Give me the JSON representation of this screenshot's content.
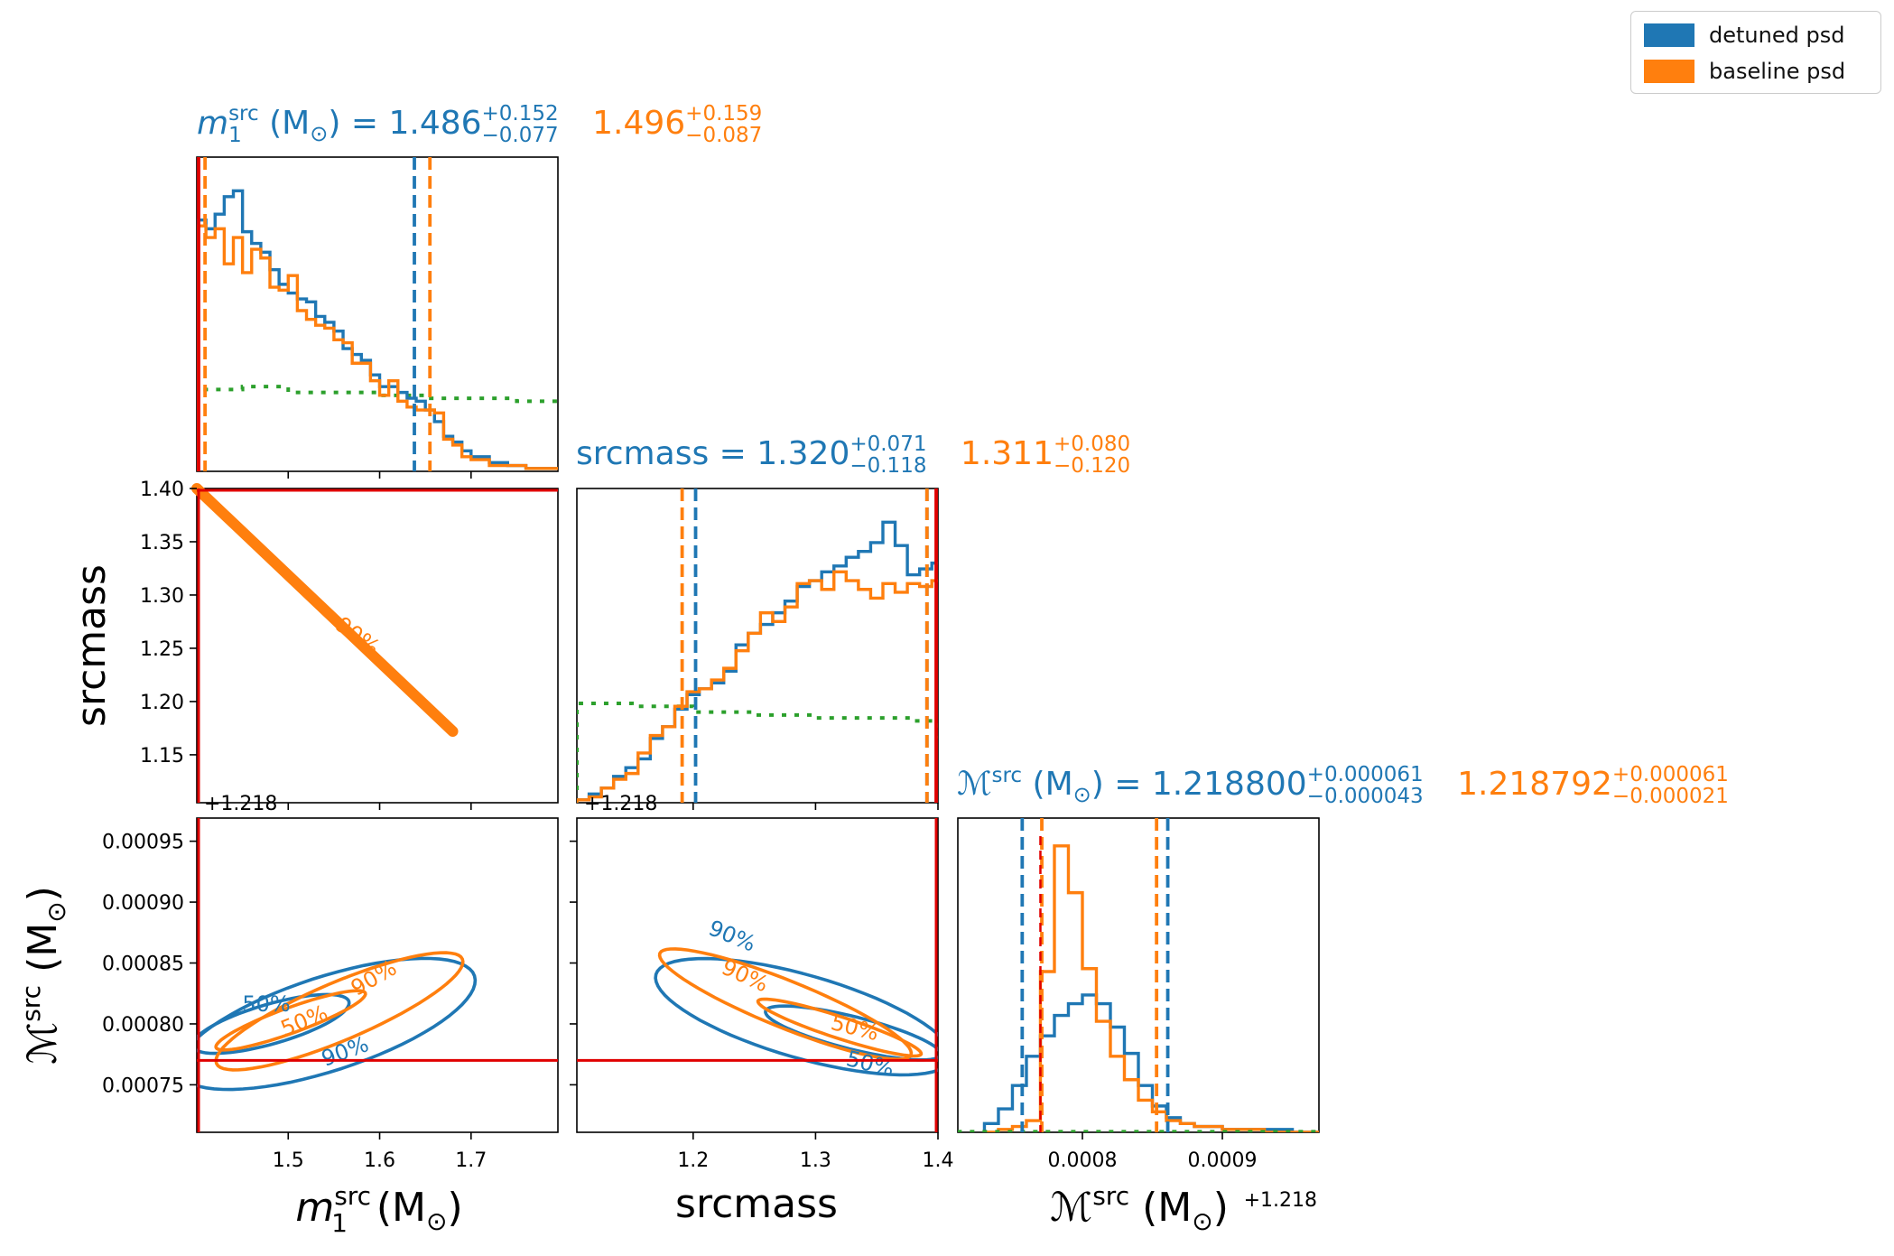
{
  "legend": [
    {
      "label": "detuned psd",
      "color": "#1f77b4"
    },
    {
      "label": "baseline psd",
      "color": "#ff7f0e"
    }
  ],
  "colors": {
    "detuned": "#1f77b4",
    "baseline": "#ff7f0e",
    "prior": "#2ca02c",
    "truth": "#e00000"
  },
  "titles": {
    "m1": {
      "label_main": "m",
      "label_sub": "1",
      "label_sup": "src",
      "unit": "(M",
      "unit_sub": "⊙",
      "unit_close": ")",
      "eq": "=",
      "detuned": {
        "value": "1.486",
        "plus": "+0.152",
        "minus": "−0.077"
      },
      "baseline": {
        "value": "1.496",
        "plus": "+0.159",
        "minus": "−0.087"
      }
    },
    "srcmass": {
      "label": "srcmass",
      "eq": "=",
      "detuned": {
        "value": "1.320",
        "plus": "+0.071",
        "minus": "−0.118"
      },
      "baseline": {
        "value": "1.311",
        "plus": "+0.080",
        "minus": "−0.120"
      }
    },
    "mchirp": {
      "label_main": "ℳ",
      "label_sup": "src",
      "unit": "(M",
      "unit_sub": "⊙",
      "unit_close": ")",
      "eq": "=",
      "detuned": {
        "value": "1.218800",
        "plus": "+0.000061",
        "minus": "−0.000043"
      },
      "baseline": {
        "value": "1.218792",
        "plus": "+0.000061",
        "minus": "−0.000021"
      }
    }
  },
  "axes": {
    "xlabels": {
      "m1": "m",
      "m1_sub": "1",
      "m1_sup": "src",
      "m1_unit": " (M",
      "unit_sub": "⊙",
      "unit_close": ")",
      "srcmass": "srcmass",
      "mchirp": "ℳ",
      "mchirp_sup": "src",
      "mchirp_unit": " (M"
    },
    "ylabels": {
      "srcmass": "srcmass",
      "mchirp": "ℳ",
      "mchirp_sup": "src",
      "mchirp_unit": " (M",
      "unit_sub": "⊙",
      "unit_close": ")"
    },
    "offset_text": "+1.218",
    "m1_ticks": [
      "1.5",
      "1.6",
      "1.7"
    ],
    "srcmass_ticks": [
      "1.15",
      "1.20",
      "1.25",
      "1.30",
      "1.35",
      "1.40"
    ],
    "srcmass_xticks": [
      "1.2",
      "1.3",
      "1.4"
    ],
    "mchirp_yticks": [
      "0.00075",
      "0.00080",
      "0.00085",
      "0.00090",
      "0.00095"
    ],
    "mchirp_xticks": [
      "0.0008",
      "0.0009"
    ]
  },
  "contour_labels": {
    "p50": "50%",
    "p90": "90%"
  },
  "chart_data": {
    "type": "corner",
    "parameters": [
      "m1_src",
      "srcmass",
      "mchirp_src"
    ],
    "ranges": {
      "m1_src": [
        1.4,
        1.795
      ],
      "srcmass": [
        1.105,
        1.4
      ],
      "mchirp_src_offset": [
        0.000711,
        0.000969
      ]
    },
    "truth": {
      "m1_src": 1.4,
      "srcmass": 1.4,
      "mchirp_src_offset": 0.00077
    },
    "series": [
      {
        "name": "detuned psd",
        "m1_hist": {
          "x": [
            1.4,
            1.41,
            1.42,
            1.43,
            1.44,
            1.45,
            1.46,
            1.47,
            1.48,
            1.49,
            1.5,
            1.51,
            1.52,
            1.53,
            1.54,
            1.55,
            1.56,
            1.57,
            1.58,
            1.59,
            1.6,
            1.61,
            1.62,
            1.63,
            1.64,
            1.65,
            1.66,
            1.67,
            1.68,
            1.69,
            1.7,
            1.72,
            1.74,
            1.76,
            1.78
          ],
          "y": [
            0.86,
            0.83,
            0.88,
            0.94,
            0.96,
            0.82,
            0.78,
            0.75,
            0.69,
            0.64,
            0.61,
            0.59,
            0.58,
            0.53,
            0.51,
            0.48,
            0.42,
            0.4,
            0.38,
            0.33,
            0.29,
            0.29,
            0.27,
            0.25,
            0.24,
            0.21,
            0.17,
            0.12,
            0.1,
            0.07,
            0.05,
            0.03,
            0.02,
            0.01,
            0.01
          ]
        },
        "srcmass_hist": {
          "x": [
            1.105,
            1.115,
            1.125,
            1.135,
            1.145,
            1.155,
            1.165,
            1.175,
            1.185,
            1.195,
            1.205,
            1.215,
            1.225,
            1.235,
            1.245,
            1.255,
            1.265,
            1.275,
            1.285,
            1.295,
            1.305,
            1.315,
            1.325,
            1.335,
            1.345,
            1.355,
            1.365,
            1.375,
            1.385,
            1.395
          ],
          "y": [
            0.01,
            0.03,
            0.05,
            0.09,
            0.12,
            0.15,
            0.22,
            0.26,
            0.32,
            0.37,
            0.39,
            0.41,
            0.45,
            0.54,
            0.58,
            0.61,
            0.65,
            0.69,
            0.74,
            0.76,
            0.79,
            0.81,
            0.84,
            0.86,
            0.89,
            0.96,
            0.88,
            0.78,
            0.8,
            0.82
          ]
        },
        "mchirp_hist": {
          "x": [
            0.00073,
            0.00074,
            0.00075,
            0.00076,
            0.00077,
            0.00078,
            0.00079,
            0.0008,
            0.00081,
            0.00082,
            0.00083,
            0.00084,
            0.00085,
            0.00086,
            0.00087,
            0.00088,
            0.00089,
            0.0009,
            0.00091,
            0.00093,
            0.00095
          ],
          "y": [
            0.03,
            0.08,
            0.16,
            0.26,
            0.33,
            0.4,
            0.44,
            0.47,
            0.44,
            0.36,
            0.27,
            0.16,
            0.09,
            0.05,
            0.03,
            0.02,
            0.02,
            0.01,
            0.01,
            0.01,
            0.0
          ]
        },
        "quantiles": {
          "m1_src": [
            1.409,
            1.638
          ],
          "srcmass": [
            1.202,
            1.391
          ],
          "mchirp_src_offset": [
            0.000757,
            0.000861
          ]
        }
      },
      {
        "name": "baseline psd",
        "m1_hist": {
          "x": [
            1.4,
            1.41,
            1.42,
            1.43,
            1.44,
            1.45,
            1.46,
            1.47,
            1.48,
            1.49,
            1.5,
            1.51,
            1.52,
            1.53,
            1.54,
            1.55,
            1.56,
            1.57,
            1.58,
            1.59,
            1.6,
            1.61,
            1.62,
            1.63,
            1.64,
            1.65,
            1.66,
            1.67,
            1.68,
            1.69,
            1.7,
            1.72,
            1.74,
            1.76,
            1.78
          ],
          "y": [
            0.84,
            0.8,
            0.83,
            0.71,
            0.8,
            0.68,
            0.76,
            0.73,
            0.63,
            0.62,
            0.67,
            0.55,
            0.52,
            0.5,
            0.49,
            0.45,
            0.44,
            0.37,
            0.37,
            0.31,
            0.26,
            0.31,
            0.24,
            0.22,
            0.21,
            0.21,
            0.2,
            0.11,
            0.09,
            0.05,
            0.04,
            0.02,
            0.02,
            0.01,
            0.01
          ]
        },
        "srcmass_hist": {
          "x": [
            1.105,
            1.115,
            1.125,
            1.135,
            1.145,
            1.155,
            1.165,
            1.175,
            1.185,
            1.195,
            1.205,
            1.215,
            1.225,
            1.235,
            1.245,
            1.255,
            1.265,
            1.275,
            1.285,
            1.295,
            1.305,
            1.315,
            1.325,
            1.335,
            1.345,
            1.355,
            1.365,
            1.375,
            1.385,
            1.395
          ],
          "y": [
            0.01,
            0.02,
            0.05,
            0.08,
            0.1,
            0.17,
            0.23,
            0.26,
            0.33,
            0.38,
            0.39,
            0.42,
            0.46,
            0.52,
            0.58,
            0.65,
            0.62,
            0.67,
            0.75,
            0.76,
            0.73,
            0.79,
            0.76,
            0.73,
            0.7,
            0.75,
            0.72,
            0.75,
            0.74,
            0.76
          ]
        },
        "mchirp_hist": {
          "x": [
            0.00073,
            0.00074,
            0.00075,
            0.00076,
            0.00077,
            0.00078,
            0.00079,
            0.0008,
            0.00081,
            0.00082,
            0.00083,
            0.00084,
            0.00085,
            0.00086,
            0.00087,
            0.00088,
            0.00089,
            0.0009,
            0.00091,
            0.00093,
            0.00095
          ],
          "y": [
            0.0,
            0.01,
            0.02,
            0.04,
            0.55,
            0.98,
            0.82,
            0.56,
            0.38,
            0.26,
            0.18,
            0.11,
            0.07,
            0.04,
            0.03,
            0.02,
            0.02,
            0.01,
            0.01,
            0.0,
            0.0
          ]
        },
        "quantiles": {
          "m1_src": [
            1.409,
            1.655
          ],
          "srcmass": [
            1.191,
            1.391
          ],
          "mchirp_src_offset": [
            0.000771,
            0.000853
          ]
        }
      },
      {
        "name": "prior",
        "m1_hist": {
          "x": [
            1.4,
            1.45,
            1.5,
            1.55,
            1.6,
            1.65,
            1.7,
            1.75,
            1.79
          ],
          "y": [
            0.28,
            0.29,
            0.27,
            0.27,
            0.26,
            0.25,
            0.25,
            0.24,
            0.24
          ]
        },
        "srcmass_hist": {
          "x": [
            1.105,
            1.15,
            1.2,
            1.25,
            1.3,
            1.35,
            1.38,
            1.4
          ],
          "y": [
            0.34,
            0.33,
            0.31,
            0.3,
            0.29,
            0.29,
            0.28,
            0.22
          ]
        },
        "mchirp_hist": {
          "x": [
            0.000711,
            0.000969
          ],
          "y": [
            0.002,
            0.002
          ]
        }
      }
    ]
  }
}
